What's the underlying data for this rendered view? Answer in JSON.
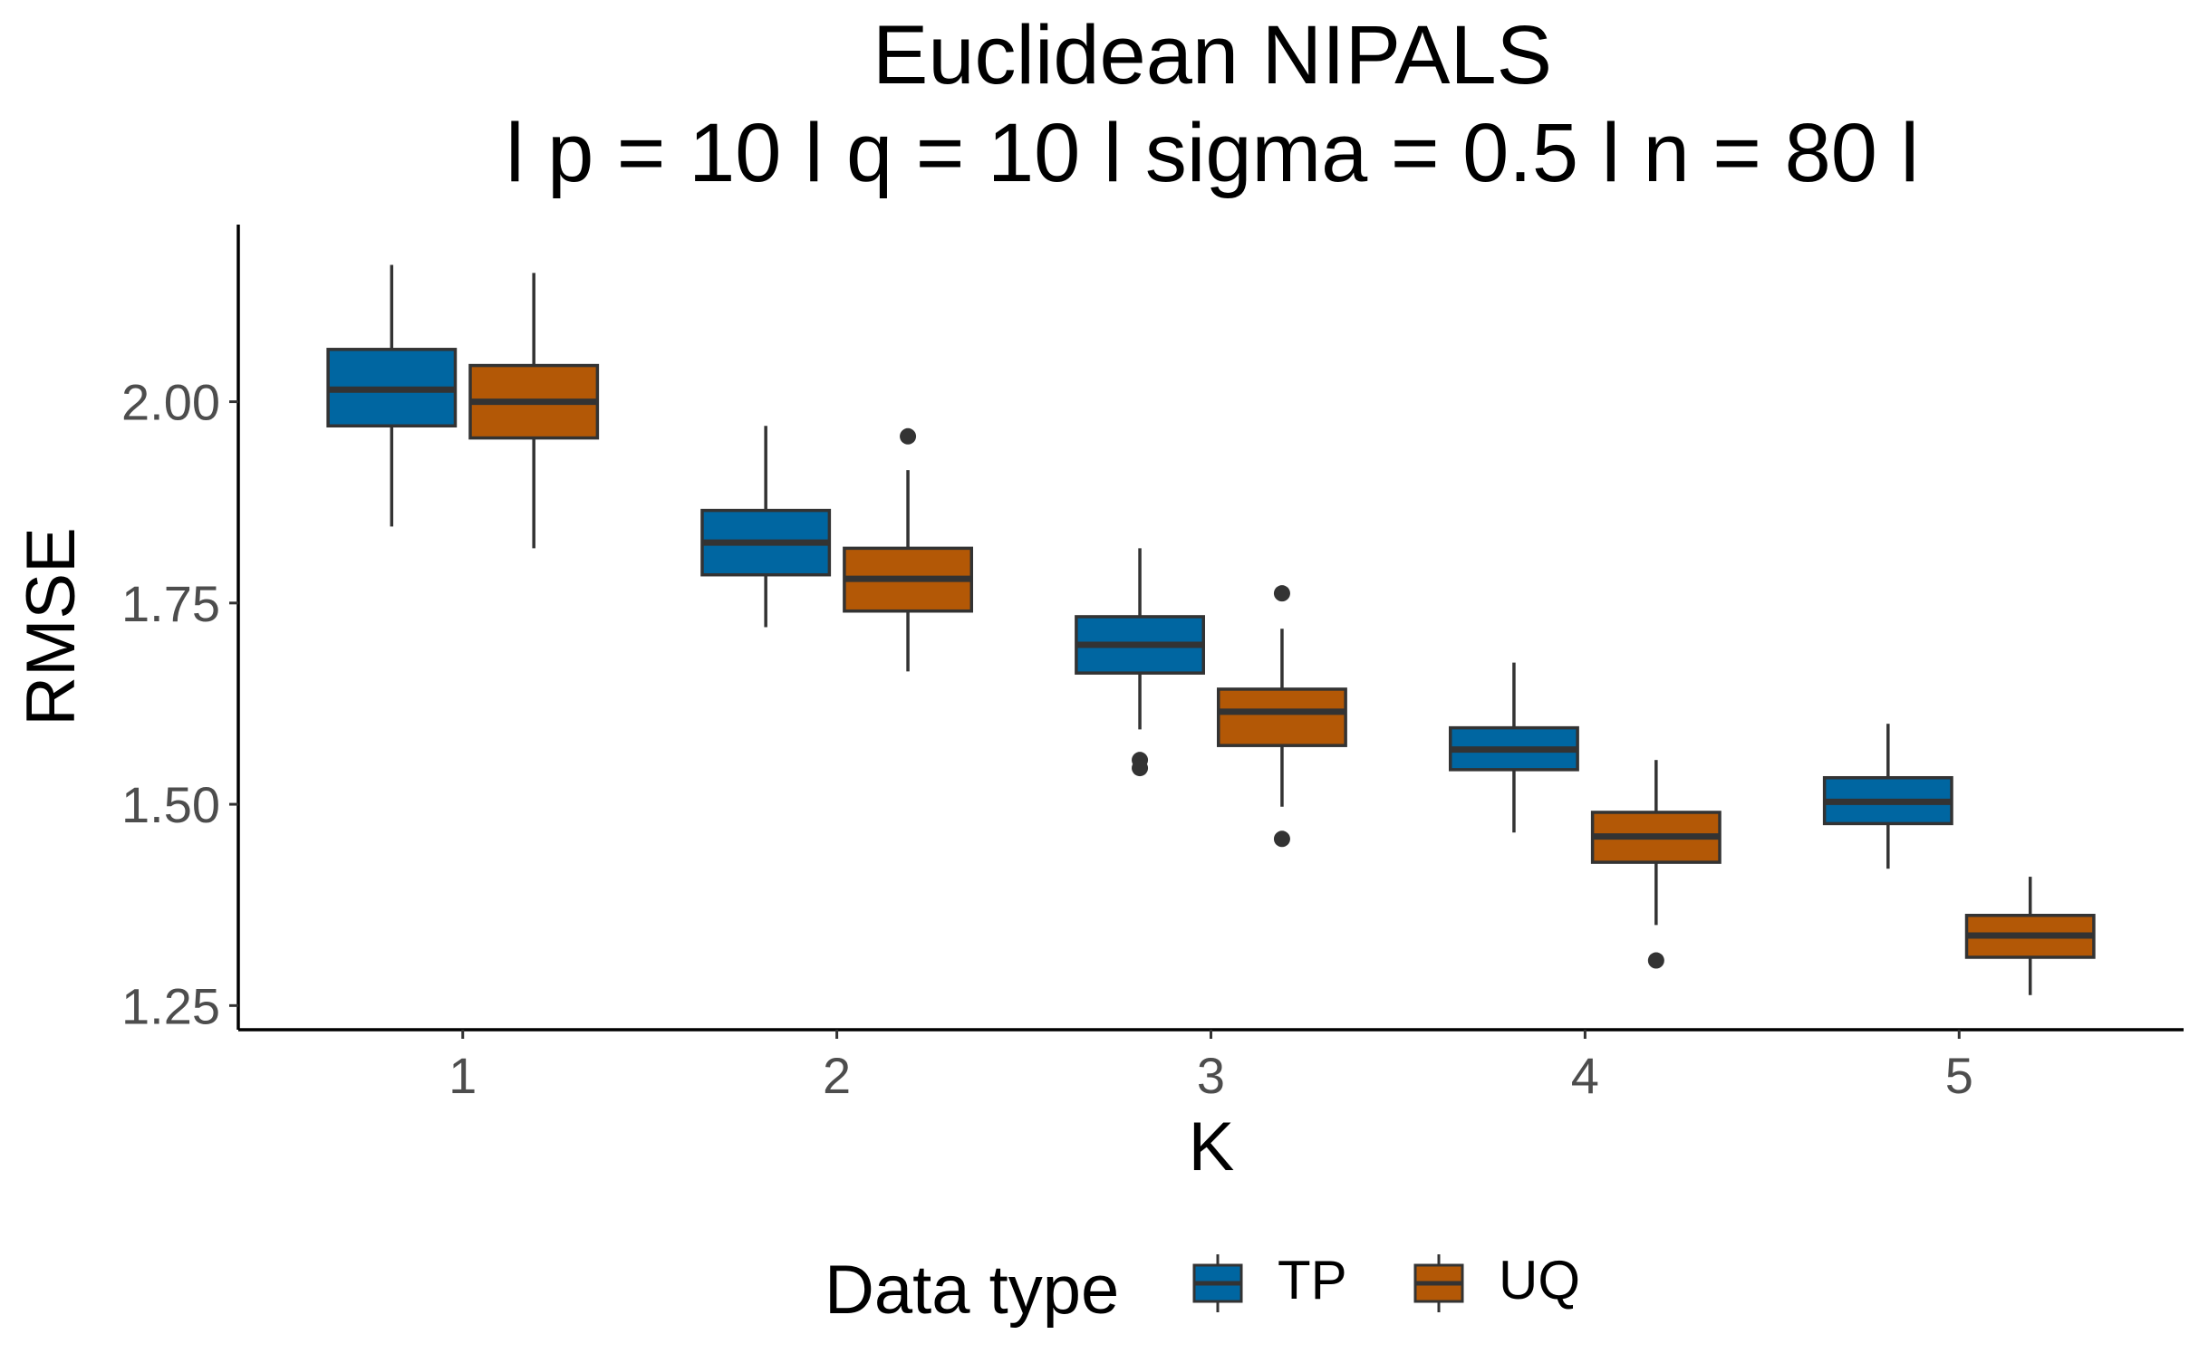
{
  "chart_data": {
    "type": "box",
    "title": "Euclidean NIPALS",
    "subtitle": "l p = 10 l q = 10 l sigma = 0.5 l n = 80 l",
    "xlabel": "K",
    "ylabel": "RMSE",
    "categories": [
      "1",
      "2",
      "3",
      "4",
      "5"
    ],
    "ylim": [
      1.22,
      2.22
    ],
    "yticks": [
      1.25,
      1.5,
      1.75,
      2.0
    ],
    "ytick_labels": [
      "1.25",
      "1.50",
      "1.75",
      "2.00"
    ],
    "grid": false,
    "legend": {
      "title": "Data type",
      "position": "bottom"
    },
    "series": [
      {
        "name": "TP",
        "color": "#0066a1",
        "boxes": [
          {
            "x": "1",
            "min": 1.845,
            "q1": 1.97,
            "median": 2.015,
            "q3": 2.065,
            "max": 2.17,
            "outliers": []
          },
          {
            "x": "2",
            "min": 1.72,
            "q1": 1.785,
            "median": 1.825,
            "q3": 1.865,
            "max": 1.97,
            "outliers": []
          },
          {
            "x": "3",
            "min": 1.593,
            "q1": 1.663,
            "median": 1.698,
            "q3": 1.733,
            "max": 1.818,
            "outliers": [
              1.555,
              1.545
            ]
          },
          {
            "x": "4",
            "min": 1.465,
            "q1": 1.543,
            "median": 1.568,
            "q3": 1.595,
            "max": 1.676,
            "outliers": []
          },
          {
            "x": "5",
            "min": 1.42,
            "q1": 1.476,
            "median": 1.503,
            "q3": 1.533,
            "max": 1.6,
            "outliers": []
          }
        ]
      },
      {
        "name": "UQ",
        "color": "#b35806",
        "boxes": [
          {
            "x": "1",
            "min": 1.818,
            "q1": 1.955,
            "median": 2.0,
            "q3": 2.045,
            "max": 2.16,
            "outliers": []
          },
          {
            "x": "2",
            "min": 1.665,
            "q1": 1.74,
            "median": 1.78,
            "q3": 1.818,
            "max": 1.915,
            "outliers": [
              1.957
            ]
          },
          {
            "x": "3",
            "min": 1.497,
            "q1": 1.573,
            "median": 1.615,
            "q3": 1.643,
            "max": 1.718,
            "outliers": [
              1.762,
              1.457
            ]
          },
          {
            "x": "4",
            "min": 1.35,
            "q1": 1.428,
            "median": 1.46,
            "q3": 1.49,
            "max": 1.555,
            "outliers": [
              1.306
            ]
          },
          {
            "x": "5",
            "min": 1.263,
            "q1": 1.31,
            "median": 1.337,
            "q3": 1.362,
            "max": 1.41,
            "outliers": []
          }
        ]
      }
    ]
  }
}
